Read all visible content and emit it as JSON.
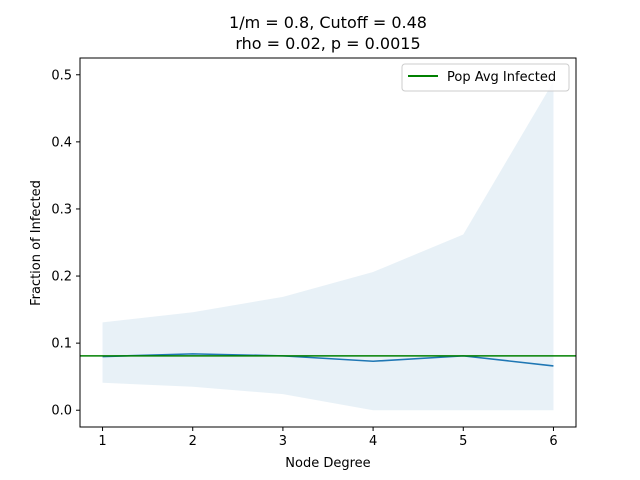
{
  "chart_data": {
    "type": "line",
    "title_line1": "1/m = 0.8, Cutoff = 0.48",
    "title_line2": "rho = 0.02, p = 0.0015",
    "xlabel": "Node Degree",
    "ylabel": "Fraction of Infected",
    "xlim": [
      0.75,
      6.25
    ],
    "ylim": [
      -0.025,
      0.525
    ],
    "x": [
      1,
      2,
      3,
      4,
      5,
      6
    ],
    "x_ticks": [
      "1",
      "2",
      "3",
      "4",
      "5",
      "6"
    ],
    "y_ticks": [
      "0.0",
      "0.1",
      "0.2",
      "0.3",
      "0.4",
      "0.5"
    ],
    "series": [
      {
        "name": "",
        "values": [
          0.08,
          0.084,
          0.081,
          0.073,
          0.081,
          0.066
        ],
        "band_low": [
          0.041,
          0.035,
          0.024,
          0.0,
          0.0,
          0.0
        ],
        "band_high": [
          0.131,
          0.146,
          0.169,
          0.206,
          0.262,
          0.49
        ],
        "color": "#1f77b4"
      }
    ],
    "hline": {
      "name": "Pop Avg Infected",
      "value": 0.081,
      "color": "#008000"
    },
    "legend_position": "upper-right",
    "grid": false
  }
}
